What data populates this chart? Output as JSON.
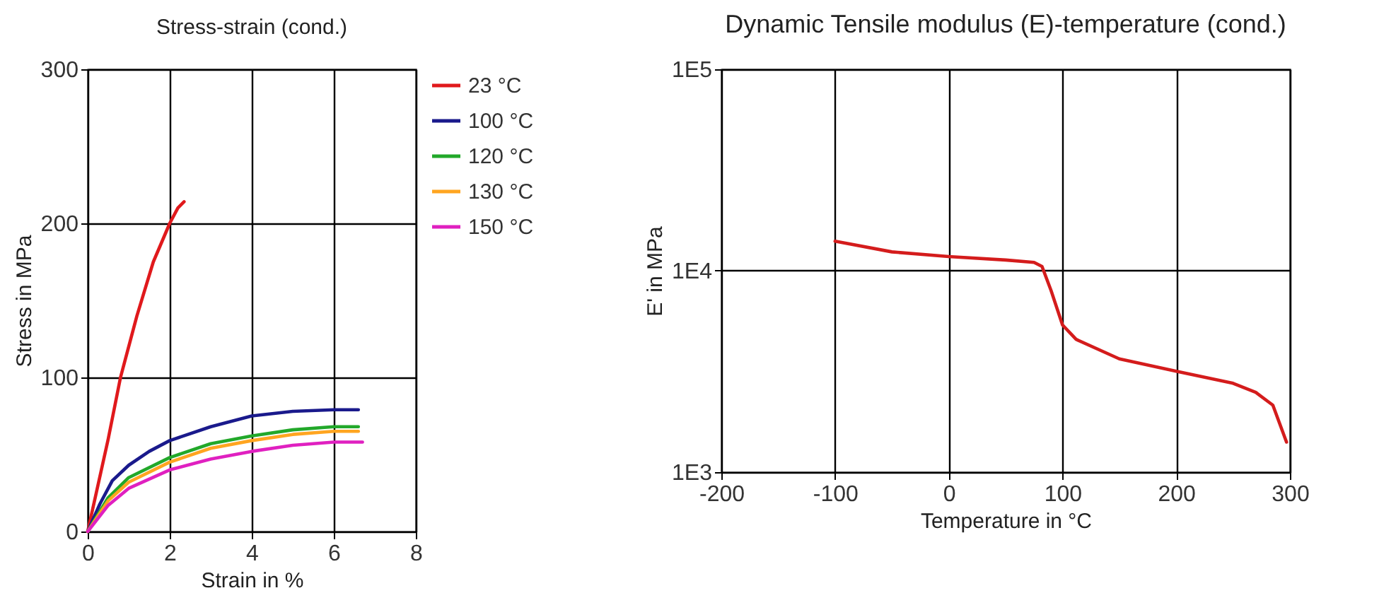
{
  "chart_data": [
    {
      "type": "line",
      "title": "Stress-strain (cond.)",
      "xlabel": "Strain in %",
      "ylabel": "Stress in MPa",
      "xlim": [
        0,
        8
      ],
      "xticks": [
        0,
        2,
        4,
        6,
        8
      ],
      "ylim": [
        0,
        300
      ],
      "yticks": [
        0,
        100,
        200,
        300
      ],
      "grid": true,
      "legend": "top right",
      "series": [
        {
          "name": "23 °C",
          "color": "#e0191c",
          "x": [
            0,
            0.5,
            0.8,
            1.2,
            1.6,
            2.0,
            2.2,
            2.35
          ],
          "values": [
            0,
            60,
            100,
            140,
            175,
            200,
            210,
            214
          ]
        },
        {
          "name": "100 °C",
          "color": "#1a1a8c",
          "x": [
            0,
            0.3,
            0.6,
            1,
            1.5,
            2,
            3,
            4,
            5,
            6,
            6.6
          ],
          "values": [
            0,
            18,
            33,
            43,
            52,
            59,
            68,
            75,
            78,
            79,
            79
          ]
        },
        {
          "name": "120 °C",
          "color": "#22a82a",
          "x": [
            0,
            0.5,
            1,
            2,
            3,
            4,
            5,
            6,
            6.6
          ],
          "values": [
            0,
            22,
            35,
            48,
            57,
            62,
            66,
            68,
            68
          ]
        },
        {
          "name": "130 °C",
          "color": "#ffa520",
          "x": [
            0,
            0.5,
            1,
            2,
            3,
            4,
            5,
            6,
            6.6
          ],
          "values": [
            0,
            20,
            32,
            45,
            54,
            59,
            63,
            65,
            65
          ]
        },
        {
          "name": "150 °C",
          "color": "#e020c0",
          "x": [
            0,
            0.5,
            1,
            2,
            3,
            4,
            5,
            6,
            6.7
          ],
          "values": [
            0,
            17,
            28,
            40,
            47,
            52,
            56,
            58,
            58
          ]
        }
      ]
    },
    {
      "type": "line",
      "title": "Dynamic Tensile modulus (E)-temperature (cond.)",
      "xlabel": "Temperature in °C",
      "ylabel": "E' in MPa",
      "xlim": [
        -200,
        300
      ],
      "xticks": [
        -200,
        -100,
        0,
        100,
        200,
        300
      ],
      "ylim": [
        1000,
        100000
      ],
      "yticks": [
        {
          "value": 1000,
          "label": "1E3"
        },
        {
          "value": 10000,
          "label": "1E4"
        },
        {
          "value": 100000,
          "label": "1E5"
        }
      ],
      "log": "y",
      "grid": true,
      "series": [
        {
          "color": "#d41c1c",
          "x": [
            -100,
            -50,
            0,
            50,
            75,
            82,
            90,
            100,
            112,
            150,
            200,
            250,
            270,
            285,
            297
          ],
          "values": [
            14000,
            12400,
            11750,
            11300,
            11000,
            10500,
            7960,
            5380,
            4560,
            3650,
            3170,
            2760,
            2490,
            2150,
            1410
          ]
        }
      ]
    }
  ]
}
